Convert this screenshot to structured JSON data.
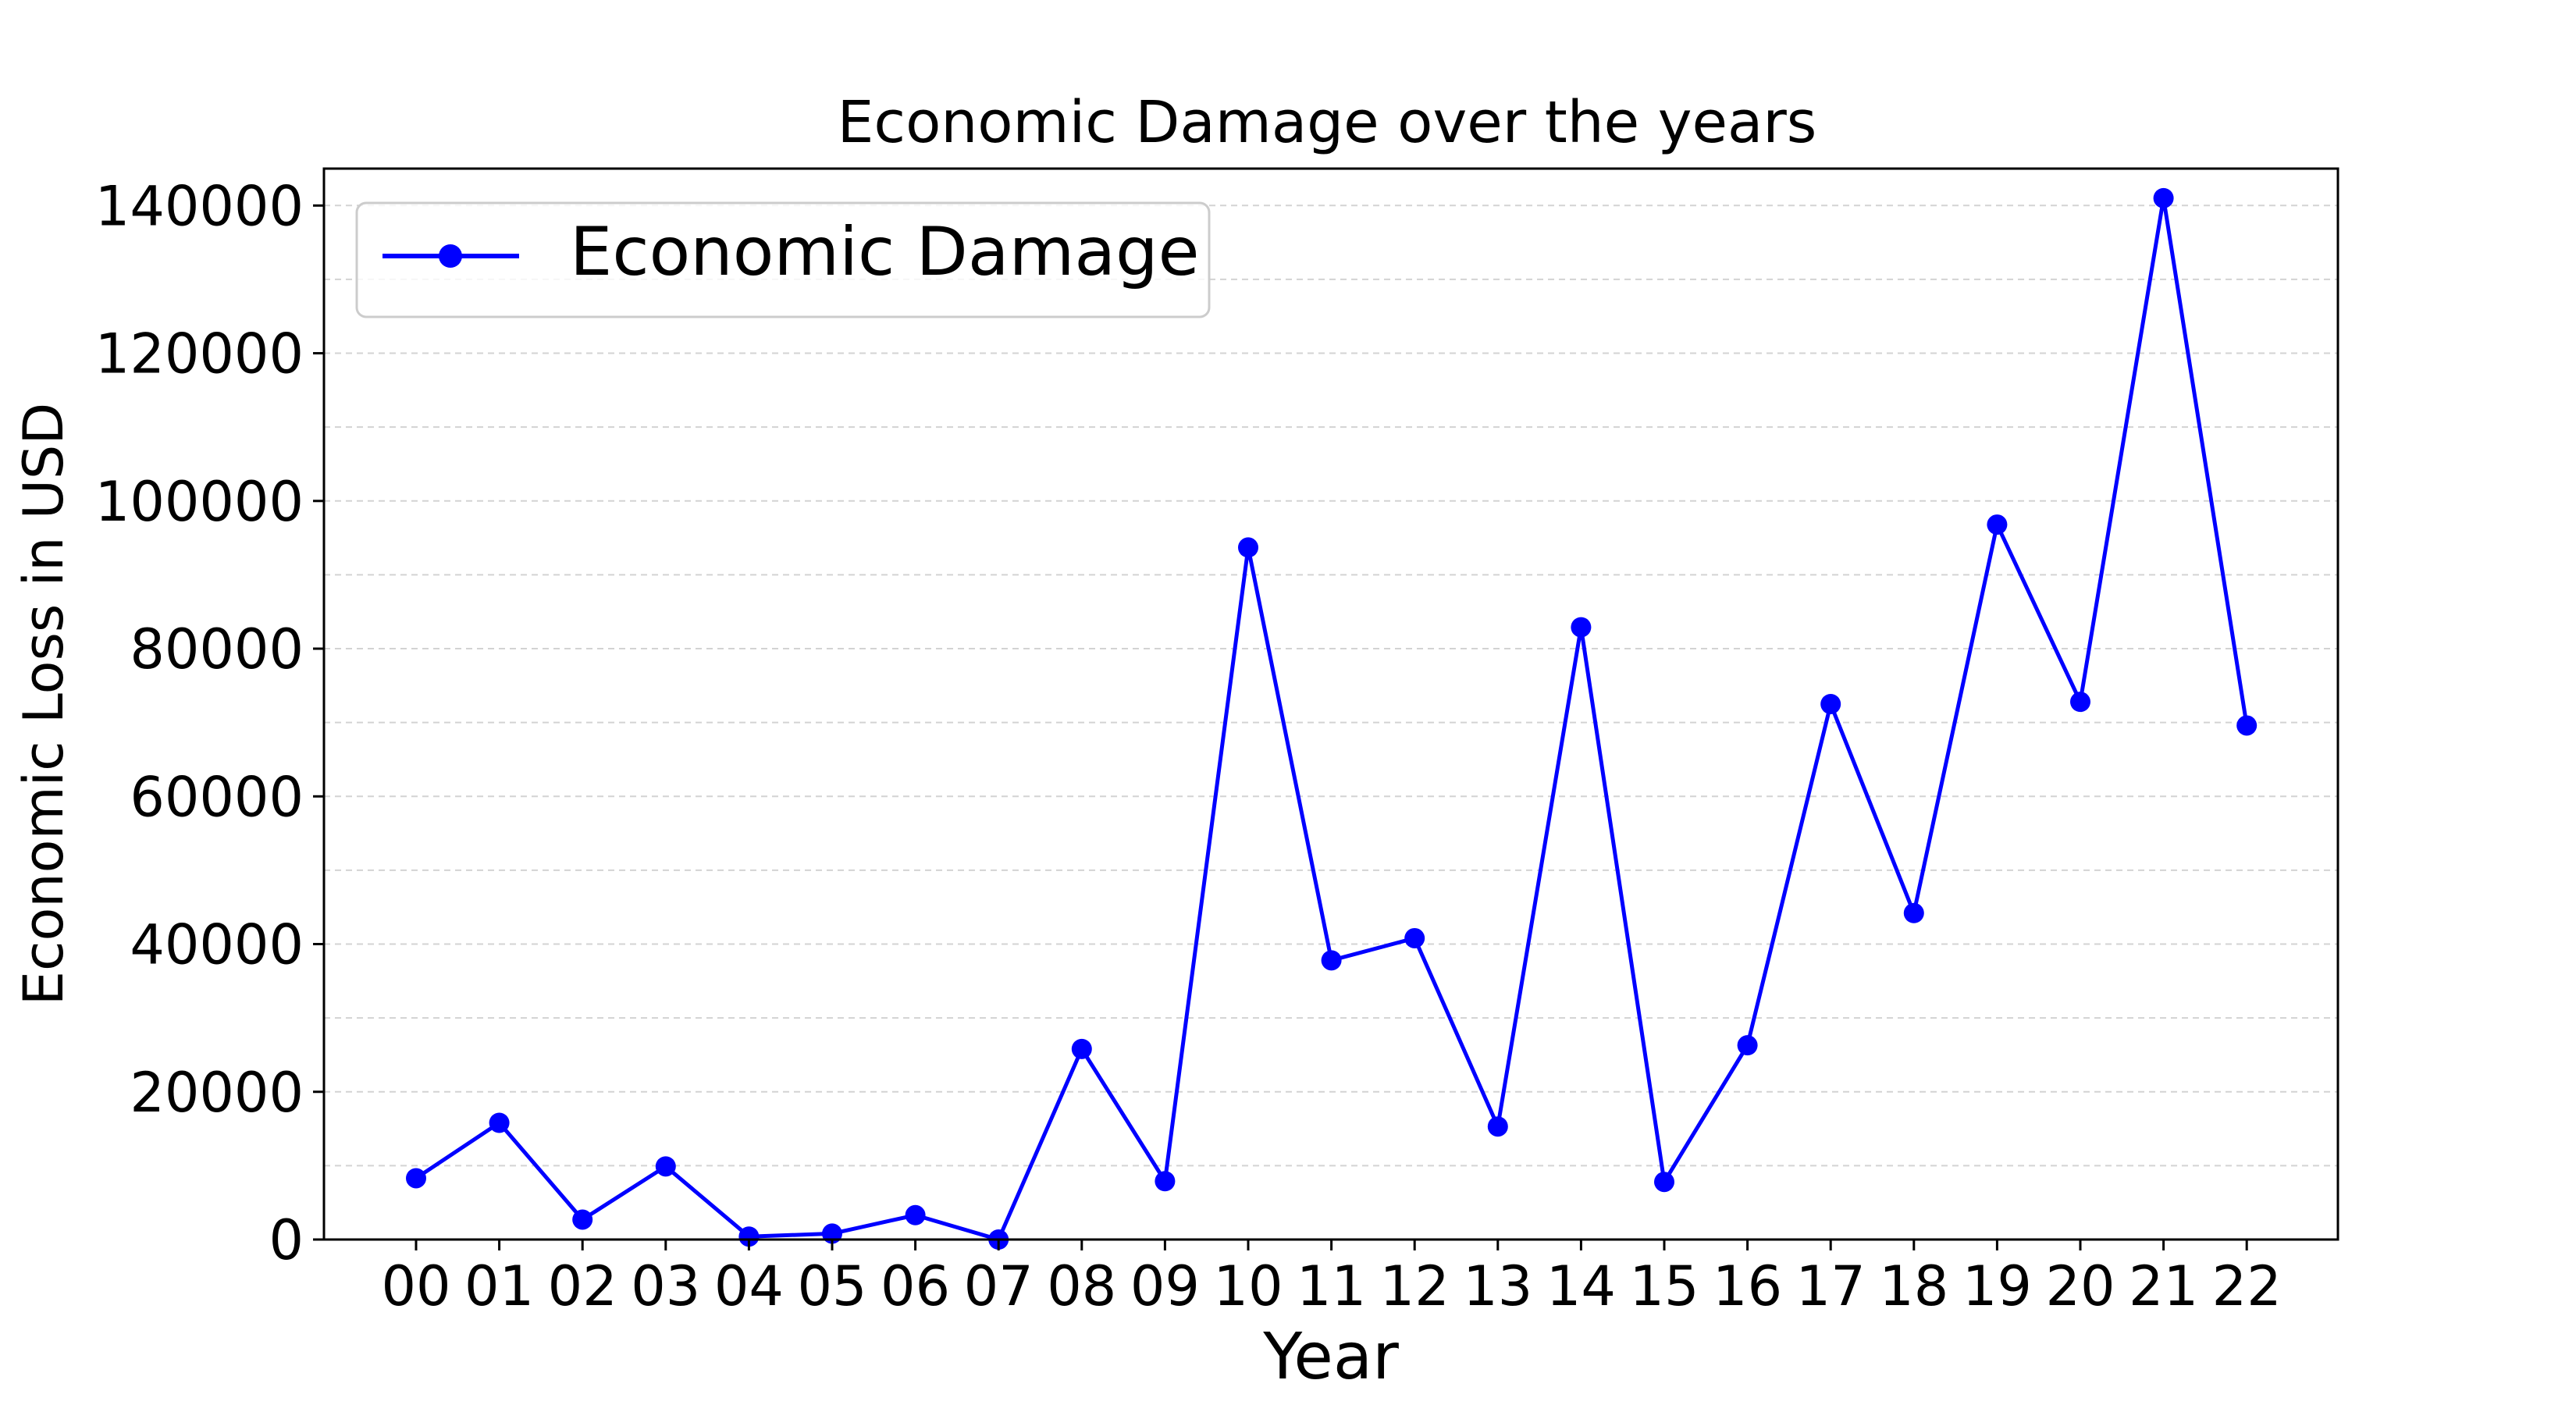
{
  "chart_data": {
    "type": "line",
    "title": "Economic Damage over the years",
    "xlabel": "Year",
    "ylabel": "Economic Loss in USD",
    "categories": [
      "00",
      "01",
      "02",
      "03",
      "04",
      "05",
      "06",
      "07",
      "08",
      "09",
      "10",
      "11",
      "12",
      "13",
      "14",
      "15",
      "16",
      "17",
      "18",
      "19",
      "20",
      "21",
      "22"
    ],
    "series": [
      {
        "name": "Economic Damage",
        "color": "#0000ff",
        "marker": "circle",
        "values": [
          8300,
          15800,
          2700,
          9900,
          400,
          800,
          3300,
          0,
          25800,
          7900,
          93700,
          37800,
          40800,
          15300,
          82900,
          7800,
          26300,
          72500,
          44200,
          96800,
          72800,
          141000,
          69600
        ]
      }
    ],
    "ylim": [
      0,
      145000
    ],
    "yticks": [
      0,
      20000,
      40000,
      60000,
      80000,
      100000,
      120000,
      140000
    ],
    "ytick_labels": [
      "0",
      "20000",
      "40000",
      "60000",
      "80000",
      "100000",
      "120000",
      "140000"
    ],
    "grid": "y-dashed",
    "legend_position": "top-left"
  }
}
